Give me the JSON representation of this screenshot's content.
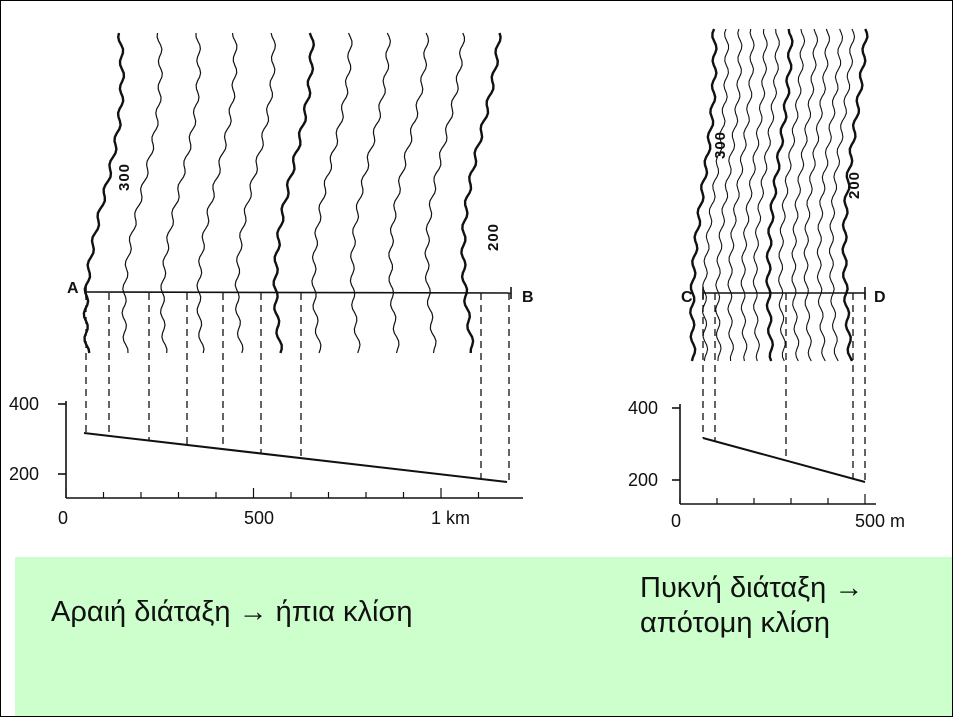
{
  "diagrams": [
    {
      "id": "gentle",
      "profile_points": [
        "A",
        "B"
      ],
      "contour_labels": [
        "300",
        "200"
      ],
      "elevation_ticks": [
        "400",
        "200"
      ],
      "distance_ticks": [
        "0",
        "500",
        "1 km"
      ]
    },
    {
      "id": "steep",
      "profile_points": [
        "C",
        "D"
      ],
      "contour_labels": [
        "300",
        "200"
      ],
      "elevation_ticks": [
        "400",
        "200"
      ],
      "distance_ticks": [
        "0",
        "500 m"
      ]
    }
  ],
  "captions": {
    "left": "Αραιή διάταξη → ήπια κλίση",
    "right_line1": "Πυκνή διάταξη →",
    "right_line2": "απότομη κλίση"
  },
  "colors": {
    "caption_band": "#ccffcc",
    "ink": "#111111"
  }
}
